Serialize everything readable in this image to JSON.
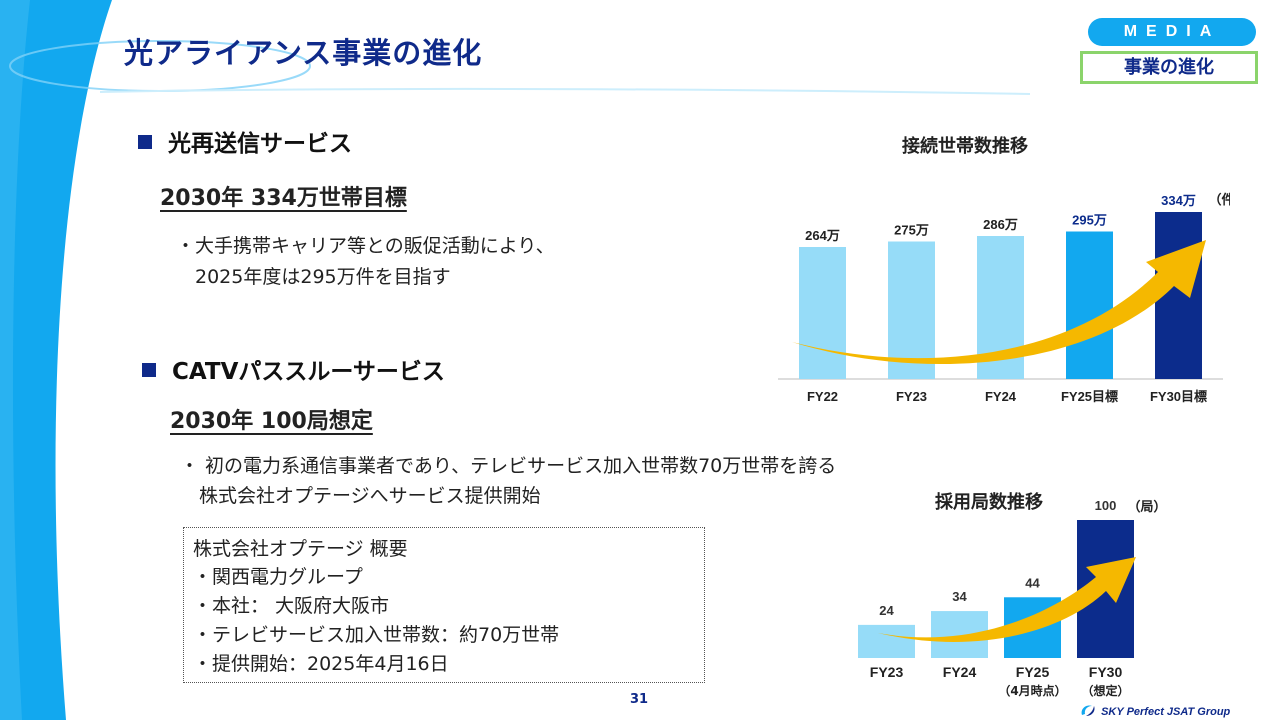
{
  "header": {
    "title": "光アライアンス事業の進化",
    "media_label": "MEDIA",
    "section_label": "事業の進化"
  },
  "section1": {
    "heading": "光再送信サービス",
    "target": "2030年 334万世帯目標",
    "bullets": [
      "・大手携帯キャリア等との販促活動により、",
      "　2025年度は295万件を目指す"
    ]
  },
  "section2": {
    "heading": "CATVパススルーサービス",
    "target": "2030年 100局想定",
    "bullets": [
      "・ 初の電力系通信事業者であり、テレビサービス加入世帯数70万世帯を誇る",
      "　株式会社オプテージへサービス提供開始"
    ]
  },
  "optage_box": {
    "lines": [
      "株式会社オプテージ 概要",
      "・関西電力グループ",
      "・本社： 大阪府大阪市",
      "・テレビサービス加入世帯数：約70万世帯",
      "・提供開始：2025年4月16日"
    ]
  },
  "chart_data": [
    {
      "type": "bar",
      "title": "接続世帯数推移",
      "unit_label": "（件）",
      "categories": [
        "FY22",
        "FY23",
        "FY24",
        "FY25目標",
        "FY30目標"
      ],
      "values": [
        264,
        275,
        286,
        295,
        334
      ],
      "value_labels": [
        "264万",
        "275万",
        "286万",
        "295万",
        "334万"
      ],
      "bar_colors": [
        "#96dcf8",
        "#96dcf8",
        "#96dcf8",
        "#12a8ef",
        "#0c2c8c"
      ],
      "label_colors": [
        "#222222",
        "#222222",
        "#222222",
        "#0c2c8c",
        "#0c2c8c"
      ],
      "ylim": [
        0,
        360
      ],
      "grid": false,
      "trend_arrow": true
    },
    {
      "type": "bar",
      "title": "採用局数推移",
      "unit_label": "（局）",
      "categories": [
        "FY23",
        "FY24",
        "FY25",
        "FY30"
      ],
      "sublabels": [
        "",
        "",
        "（4月時点）",
        "（想定）"
      ],
      "values": [
        24,
        34,
        44,
        100
      ],
      "value_labels": [
        "24",
        "34",
        "44",
        "100"
      ],
      "bar_colors": [
        "#96dcf8",
        "#96dcf8",
        "#12a8ef",
        "#0c2c8c"
      ],
      "ylim": [
        0,
        100
      ],
      "grid": false,
      "trend_arrow": true
    }
  ],
  "footer": {
    "page_number": "31",
    "logo_text": "SKY Perfect JSAT Group"
  },
  "colors": {
    "navy": "#0f2a8a",
    "sky": "#12a8ef",
    "light_sky": "#96dcf8",
    "arrow": "#f5b800",
    "green_border": "#8bd46b"
  }
}
